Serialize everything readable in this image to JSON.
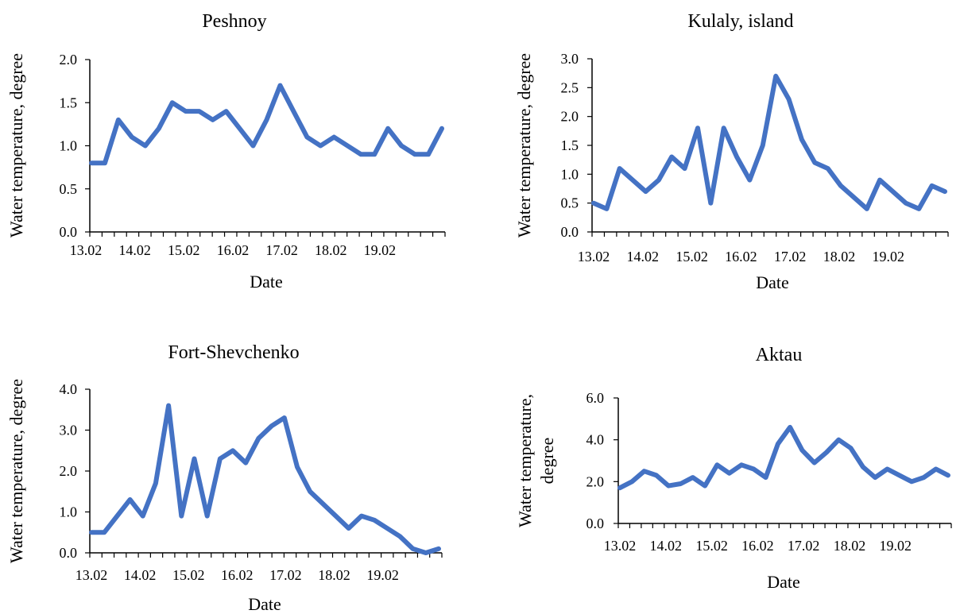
{
  "chart_data": [
    {
      "type": "line",
      "title": "Peshnoy",
      "xlabel": "Date",
      "ylabel": "Water temperature, degree",
      "ylim": [
        0,
        2.0
      ],
      "yticks": [
        "0.0",
        "0.5",
        "1.0",
        "1.5",
        "2.0"
      ],
      "xtick_labels": [
        "13.02",
        "14.02",
        "15.02",
        "16.02",
        "17.02",
        "18.02",
        "19.02"
      ],
      "color": "#4472C4",
      "grid": false,
      "values": [
        0.8,
        0.8,
        1.3,
        1.1,
        1.0,
        1.2,
        1.5,
        1.4,
        1.4,
        1.3,
        1.4,
        1.2,
        1.0,
        1.3,
        1.7,
        1.4,
        1.1,
        1.0,
        1.1,
        1.0,
        0.9,
        0.9,
        1.2,
        1.0,
        0.9,
        0.9,
        1.2
      ]
    },
    {
      "type": "line",
      "title": "Kulaly, island",
      "xlabel": "Date",
      "ylabel": "Water temperature, degree",
      "ylim": [
        0,
        3.0
      ],
      "yticks": [
        "0.0",
        "0.5",
        "1.0",
        "1.5",
        "2.0",
        "2.5",
        "3.0"
      ],
      "xtick_labels": [
        "13.02",
        "14.02",
        "15.02",
        "16.02",
        "17.02",
        "18.02",
        "19.02"
      ],
      "color": "#4472C4",
      "grid": false,
      "values": [
        0.5,
        0.4,
        1.1,
        0.9,
        0.7,
        0.9,
        1.3,
        1.1,
        1.8,
        0.5,
        1.8,
        1.3,
        0.9,
        1.5,
        2.7,
        2.3,
        1.6,
        1.2,
        1.1,
        0.8,
        0.6,
        0.4,
        0.9,
        0.7,
        0.5,
        0.4,
        0.8,
        0.7
      ]
    },
    {
      "type": "line",
      "title": "Fort-Shevchenko",
      "xlabel": "Date",
      "ylabel": "Water temperature, degree",
      "ylim": [
        0,
        4.0
      ],
      "yticks": [
        "0.0",
        "1.0",
        "2.0",
        "3.0",
        "4.0"
      ],
      "xtick_labels": [
        "13.02",
        "14.02",
        "15.02",
        "16.02",
        "17.02",
        "18.02",
        "19.02"
      ],
      "color": "#4472C4",
      "grid": false,
      "values": [
        0.5,
        0.5,
        0.9,
        1.3,
        0.9,
        1.7,
        3.6,
        0.9,
        2.3,
        0.9,
        2.3,
        2.5,
        2.2,
        2.8,
        3.1,
        3.3,
        2.1,
        1.5,
        1.2,
        0.9,
        0.6,
        0.9,
        0.8,
        0.6,
        0.4,
        0.1,
        0.0,
        0.1
      ]
    },
    {
      "type": "line",
      "title": "Aktau",
      "xlabel": "Date",
      "ylabel": "Water temperature, degree",
      "ylabel_lines": [
        "Water temperature,",
        "degree"
      ],
      "ylim": [
        0,
        6.0
      ],
      "yticks": [
        "0.0",
        "2.0",
        "4.0",
        "6.0"
      ],
      "xtick_labels": [
        "13.02",
        "14.02",
        "15.02",
        "16.02",
        "17.02",
        "18.02",
        "19.02"
      ],
      "color": "#4472C4",
      "grid": false,
      "values": [
        1.7,
        2.0,
        2.5,
        2.3,
        1.8,
        1.9,
        2.2,
        1.8,
        2.8,
        2.4,
        2.8,
        2.6,
        2.2,
        3.8,
        4.6,
        3.5,
        2.9,
        3.4,
        4.0,
        3.6,
        2.7,
        2.2,
        2.6,
        2.3,
        2.0,
        2.2,
        2.6,
        2.3
      ]
    }
  ]
}
